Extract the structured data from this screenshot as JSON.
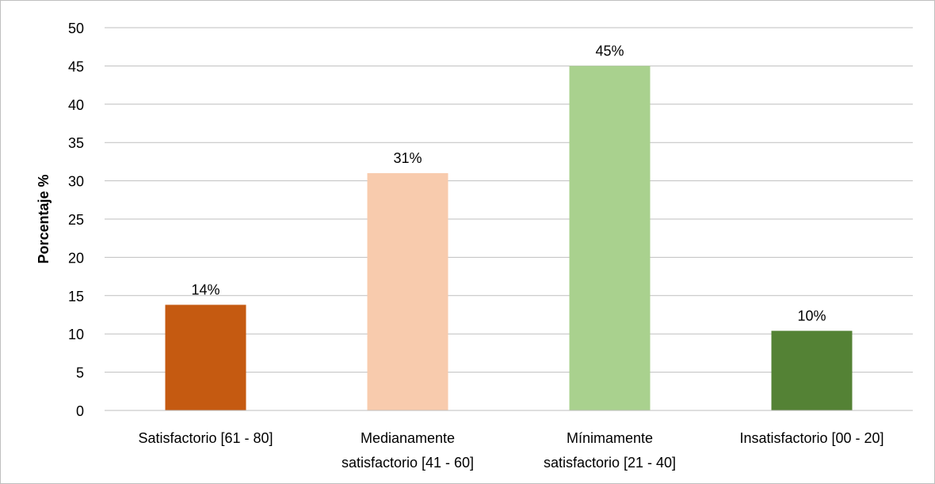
{
  "chart_data": {
    "type": "bar",
    "categories": [
      [
        "Satisfactorio [61 - 80]"
      ],
      [
        "Medianamente",
        "satisfactorio [41 - 60]"
      ],
      [
        "Mínimamente",
        "satisfactorio [21 - 40]"
      ],
      [
        "Insatisfactorio [00 - 20]"
      ]
    ],
    "values": [
      13.8,
      31,
      45,
      10.4
    ],
    "data_labels": [
      "14%",
      "31%",
      "45%",
      "10%"
    ],
    "bar_colors": [
      "#c55a11",
      "#f8cbad",
      "#a9d18e",
      "#548235"
    ],
    "title": "",
    "xlabel": "",
    "ylabel": "Porcentaje %",
    "ylim": [
      0,
      50
    ],
    "yticks": [
      0,
      5,
      10,
      15,
      20,
      25,
      30,
      35,
      40,
      45,
      50
    ],
    "grid": true,
    "legend": "none"
  }
}
